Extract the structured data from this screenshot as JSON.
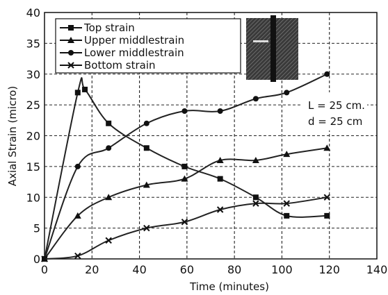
{
  "chart_data": {
    "type": "line",
    "title": "",
    "xlabel": "Time (minutes)",
    "ylabel": "Axial Strain (micro)",
    "xlim": [
      0,
      140
    ],
    "ylim": [
      0,
      40
    ],
    "xticks": [
      0,
      20,
      40,
      60,
      80,
      100,
      120,
      140
    ],
    "yticks": [
      0,
      5,
      10,
      15,
      20,
      25,
      30,
      35,
      40
    ],
    "grid": true,
    "legend_position": "top-left",
    "series": [
      {
        "name": "Top strain",
        "marker": "square",
        "x": [
          0,
          14,
          17,
          27,
          43,
          59,
          74,
          89,
          102,
          119
        ],
        "y": [
          0,
          27,
          27.5,
          22,
          18,
          15,
          13,
          10,
          7,
          7
        ]
      },
      {
        "name": "Upper middlestrain",
        "marker": "triangle",
        "x": [
          0,
          14,
          27,
          43,
          59,
          74,
          89,
          102,
          119
        ],
        "y": [
          0,
          7,
          10,
          12,
          13,
          16,
          16,
          17,
          18
        ]
      },
      {
        "name": "Lower middlestrain",
        "marker": "circle",
        "x": [
          0,
          14,
          27,
          43,
          59,
          74,
          89,
          102,
          119
        ],
        "y": [
          0,
          15,
          18,
          22,
          24,
          24,
          26,
          27,
          30
        ]
      },
      {
        "name": "Bottom strain",
        "marker": "x",
        "x": [
          0,
          14,
          27,
          43,
          59,
          74,
          89,
          102,
          119
        ],
        "y": [
          0,
          0.5,
          3,
          5,
          6,
          8,
          9,
          9,
          10
        ]
      }
    ],
    "annotation": {
      "line1": "L = 25 cm.",
      "line2": "d = 25 cm"
    }
  }
}
